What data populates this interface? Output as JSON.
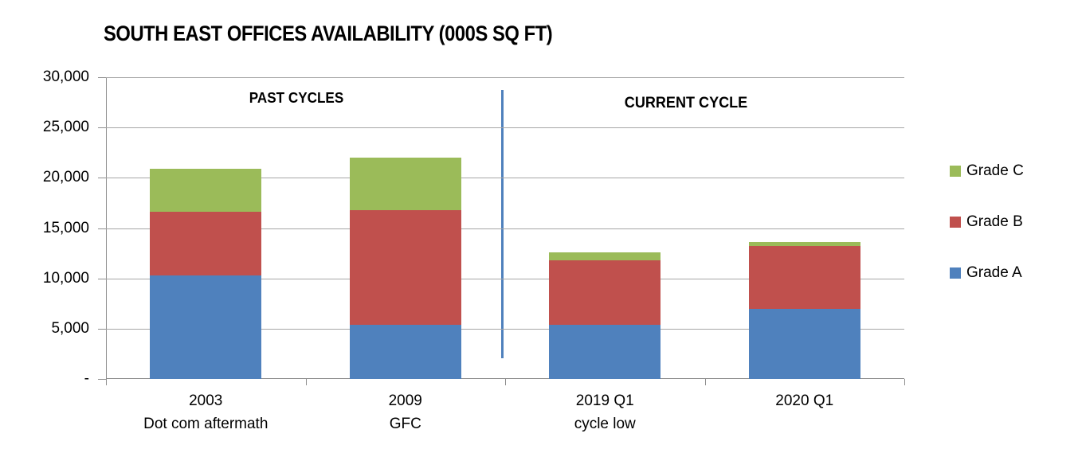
{
  "title": "SOUTH EAST OFFICES AVAILABILITY (000S SQ FT)",
  "annotations": {
    "past_cycles": "PAST CYCLES",
    "current_cycle": "CURRENT CYCLE"
  },
  "legend": [
    {
      "label": "Grade C",
      "color": "#9bbb59"
    },
    {
      "label": "Grade B",
      "color": "#c0504d"
    },
    {
      "label": "Grade A",
      "color": "#4f81bd"
    }
  ],
  "colors": {
    "grade_a": "#4f81bd",
    "grade_b": "#c0504d",
    "grade_c": "#9bbb59",
    "divider_line": "#4f81bd",
    "gridline": "#a6a6a6",
    "axis": "#8e8e8e"
  },
  "chart_data": {
    "type": "bar",
    "stacked": true,
    "title": "SOUTH EAST OFFICES AVAILABILITY (000S SQ FT)",
    "categories": [
      {
        "label": "2003",
        "sublabel": "Dot com aftermath"
      },
      {
        "label": "2009",
        "sublabel": "GFC"
      },
      {
        "label": "2019 Q1",
        "sublabel": "cycle low"
      },
      {
        "label": "2020 Q1",
        "sublabel": ""
      }
    ],
    "series": [
      {
        "name": "Grade A",
        "color": "#4f81bd",
        "values": [
          10300,
          5400,
          5400,
          7000
        ]
      },
      {
        "name": "Grade B",
        "color": "#c0504d",
        "values": [
          6300,
          11400,
          6400,
          6200
        ]
      },
      {
        "name": "Grade C",
        "color": "#9bbb59",
        "values": [
          4300,
          5200,
          800,
          400
        ]
      }
    ],
    "totals": [
      20900,
      22000,
      12600,
      13600
    ],
    "ylim": [
      0,
      30000
    ],
    "ytick_values": [
      0,
      5000,
      10000,
      15000,
      20000,
      25000,
      30000
    ],
    "ytick_labels": [
      "-",
      "5,000",
      "10,000",
      "15,000",
      "20,000",
      "25,000",
      "30,000"
    ],
    "xlabel": "",
    "ylabel": "",
    "grid": true,
    "legend_position": "right",
    "annotations": [
      {
        "text": "PAST CYCLES",
        "covers_categories": [
          0,
          1
        ]
      },
      {
        "text": "CURRENT CYCLE",
        "covers_categories": [
          2,
          3
        ]
      }
    ],
    "divider_after_category": 2
  }
}
